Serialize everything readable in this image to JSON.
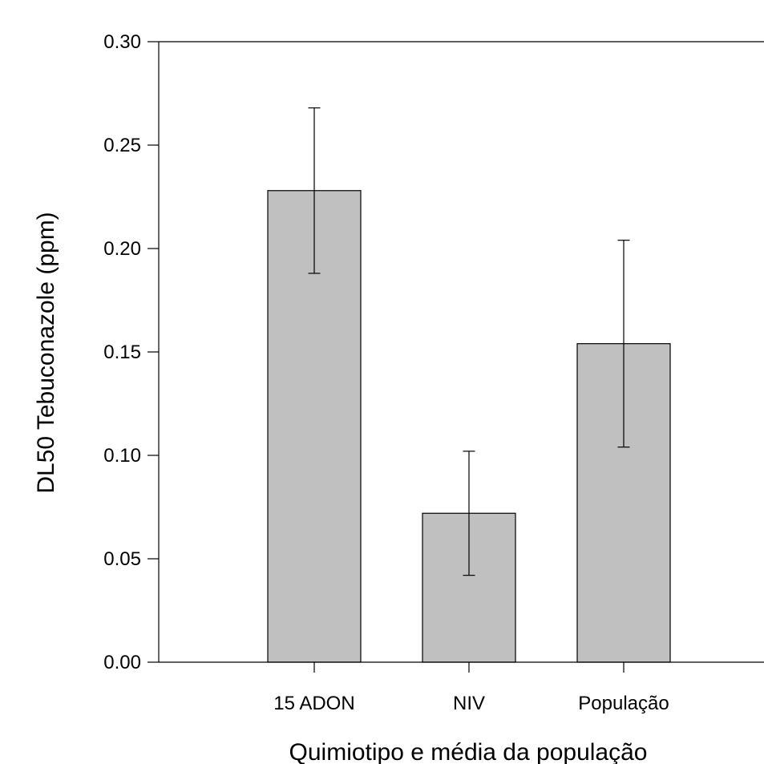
{
  "chart_data": {
    "type": "bar",
    "title": "",
    "xlabel": "Quimiotipo e média da população",
    "ylabel": "DL50 Tebuconazole (ppm)",
    "categories": [
      "15 ADON",
      "NIV",
      "População"
    ],
    "values": [
      0.228,
      0.072,
      0.154
    ],
    "errors": [
      0.04,
      0.03,
      0.05
    ],
    "ylim": [
      0,
      0.3
    ],
    "yticks": [
      "0.00",
      "0.05",
      "0.10",
      "0.15",
      "0.20",
      "0.25",
      "0.30"
    ],
    "grid": false,
    "legend": "none",
    "colors": {
      "bar": "#c0c0c0",
      "edge": "#000000",
      "axis": "#000000"
    }
  }
}
